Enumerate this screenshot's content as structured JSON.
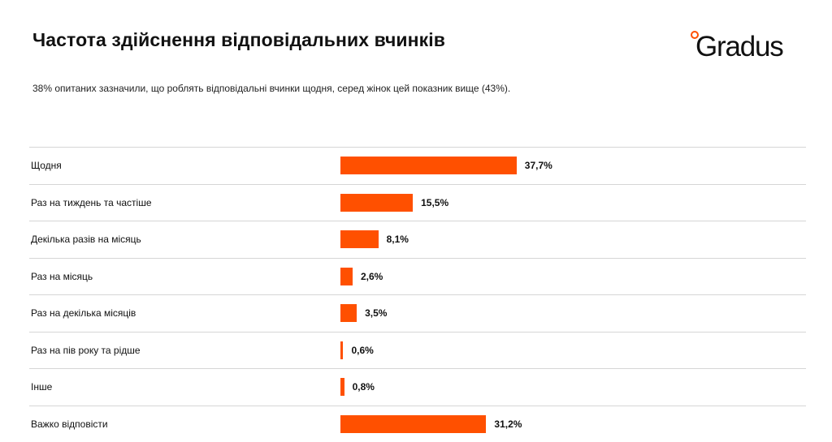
{
  "header": {
    "title": "Частота здійснення відповідальних вчинків",
    "subtitle": "38% опитаних зазначили, що роблять відповідальні вчинки щодня, серед жінок цей показник вище (43%).",
    "logo_text": "Gradus"
  },
  "colors": {
    "bar": "#ff5000",
    "accent": "#ff5000"
  },
  "chart_data": {
    "type": "bar",
    "orientation": "horizontal",
    "title": "Частота здійснення відповідальних вчинків",
    "categories": [
      "Щодня",
      "Раз на тиждень та частіше",
      "Декілька разів на місяць",
      "Раз на місяць",
      "Раз на декілька місяців",
      "Раз на пів року та рідше",
      "Інше",
      "Важко відповісти"
    ],
    "values": [
      37.7,
      15.5,
      8.1,
      2.6,
      3.5,
      0.6,
      0.8,
      31.2
    ],
    "value_labels": [
      "37,7%",
      "15,5%",
      "8,1%",
      "2,6%",
      "3,5%",
      "0,6%",
      "0,8%",
      "31,2%"
    ],
    "unit": "%",
    "xlim": [
      0,
      100
    ],
    "grid": "horizontal separators",
    "legend": "none"
  }
}
